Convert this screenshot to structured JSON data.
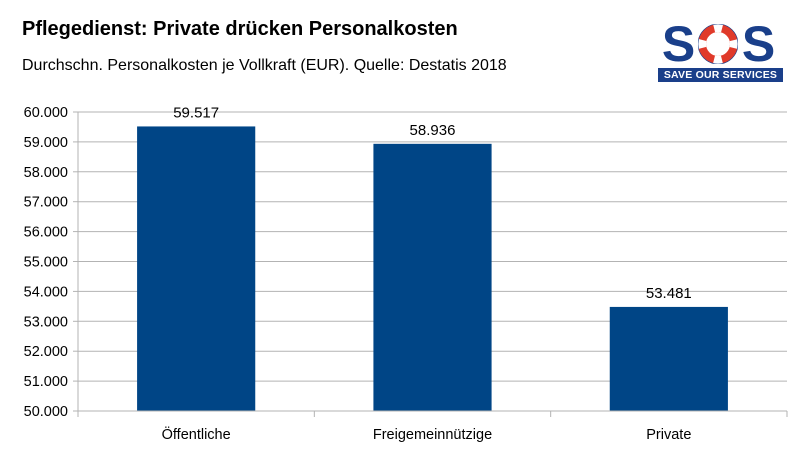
{
  "header": {
    "title": "Pflegedienst: Private drücken Personalkosten",
    "subtitle": "Durchschn. Personalkosten je Vollkraft (EUR). Quelle: Destatis 2018"
  },
  "logo": {
    "letters": [
      "S",
      "S"
    ],
    "tagline": "SAVE OUR SERVICES",
    "colors": {
      "primary": "#1a3f8a",
      "ring": "#e03a2a"
    }
  },
  "chart_data": {
    "type": "bar",
    "title": "Pflegedienst: Private drücken Personalkosten",
    "subtitle": "Durchschn. Personalkosten je Vollkraft (EUR). Quelle: Destatis 2018",
    "categories": [
      "Öffentliche",
      "Freigemeinnützige",
      "Private"
    ],
    "values": [
      59517,
      58936,
      53481
    ],
    "value_labels": [
      "59.517",
      "58.936",
      "53.481"
    ],
    "ylim": [
      50000,
      60000
    ],
    "yticks": [
      50000,
      51000,
      52000,
      53000,
      54000,
      55000,
      56000,
      57000,
      58000,
      59000,
      60000
    ],
    "ytick_labels": [
      "50.000",
      "51.000",
      "52.000",
      "53.000",
      "54.000",
      "55.000",
      "56.000",
      "57.000",
      "58.000",
      "59.000",
      "60.000"
    ],
    "xlabel": "",
    "ylabel": "",
    "grid": true,
    "bar_color": "#004586"
  }
}
